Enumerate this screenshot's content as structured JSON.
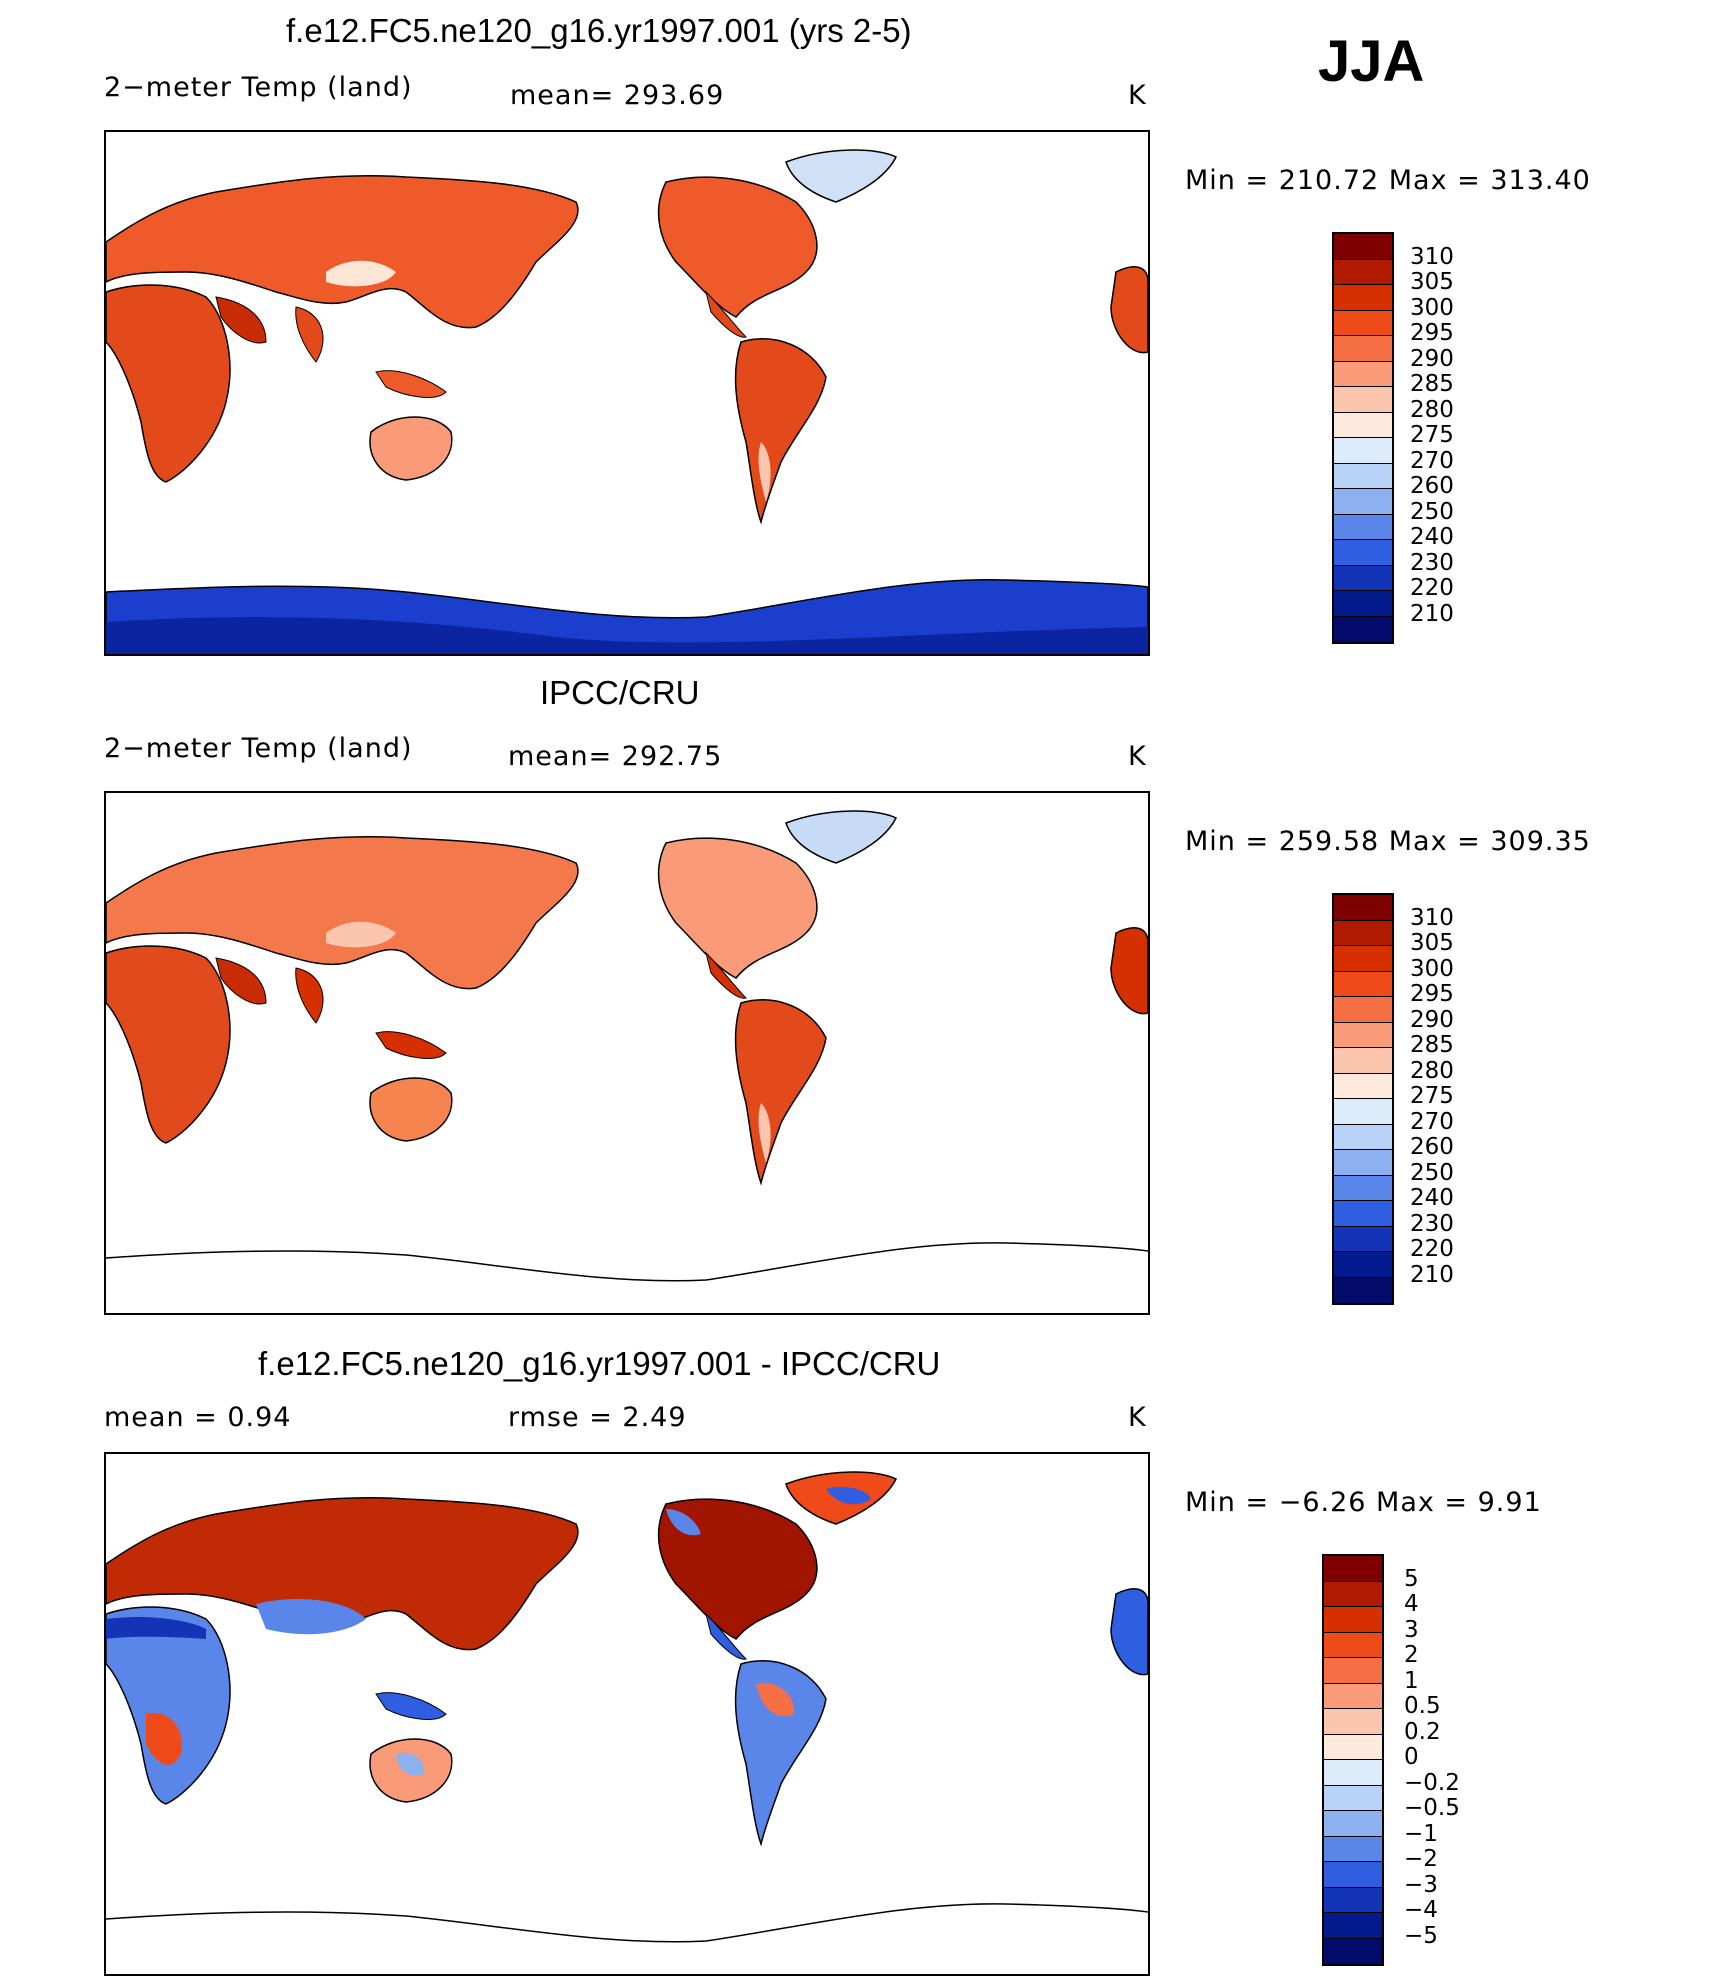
{
  "season_label": "JJA",
  "panels": [
    {
      "title": "f.e12.FC5.ne120_g16.yr1997.001 (yrs 2-5)",
      "left_text": "2−meter Temp (land)",
      "mid_text": "mean=  293.69",
      "unit": "K",
      "minmax": "Min  =  210.72  Max  =  313.40",
      "colorbar": {
        "labels": [
          "310",
          "305",
          "300",
          "295",
          "290",
          "285",
          "280",
          "275",
          "270",
          "260",
          "250",
          "240",
          "230",
          "220",
          "210"
        ],
        "colors": [
          "#7f0000",
          "#b01a00",
          "#d63000",
          "#ee4a1a",
          "#f56f45",
          "#f99a78",
          "#fcc6ae",
          "#feeadc",
          "#dcebfa",
          "#b8d3f7",
          "#8cb0f0",
          "#5a86ea",
          "#2f5fe0",
          "#1434b8",
          "#031a8c",
          "#020a6a"
        ]
      }
    },
    {
      "title": "IPCC/CRU",
      "left_text": "2−meter Temp (land)",
      "mid_text": "mean=  292.75",
      "unit": "K",
      "minmax": "Min  =  259.58  Max  =  309.35",
      "colorbar": {
        "labels": [
          "310",
          "305",
          "300",
          "295",
          "290",
          "285",
          "280",
          "275",
          "270",
          "260",
          "250",
          "240",
          "230",
          "220",
          "210"
        ],
        "colors": [
          "#7f0000",
          "#b01a00",
          "#d63000",
          "#ee4a1a",
          "#f56f45",
          "#f99a78",
          "#fcc6ae",
          "#feeadc",
          "#dcebfa",
          "#b8d3f7",
          "#8cb0f0",
          "#5a86ea",
          "#2f5fe0",
          "#1434b8",
          "#031a8c",
          "#020a6a"
        ]
      }
    },
    {
      "title": "f.e12.FC5.ne120_g16.yr1997.001 - IPCC/CRU",
      "left_text": "mean  =      0.94",
      "mid_text": "rmse  =      2.49",
      "unit": "K",
      "minmax": "Min  =     −6.26  Max  =       9.91",
      "colorbar": {
        "labels": [
          "5",
          "4",
          "3",
          "2",
          "1",
          "0.5",
          "0.2",
          "0",
          "−0.2",
          "−0.5",
          "−1",
          "−2",
          "−3",
          "−4",
          "−5"
        ],
        "colors": [
          "#7f0000",
          "#b01a00",
          "#d63000",
          "#ee4a1a",
          "#f56f45",
          "#f99a78",
          "#fcc6ae",
          "#feeadc",
          "#dcebfa",
          "#b8d3f7",
          "#8cb0f0",
          "#5a86ea",
          "#2f5fe0",
          "#1434b8",
          "#031a8c",
          "#020a6a"
        ]
      }
    }
  ]
}
